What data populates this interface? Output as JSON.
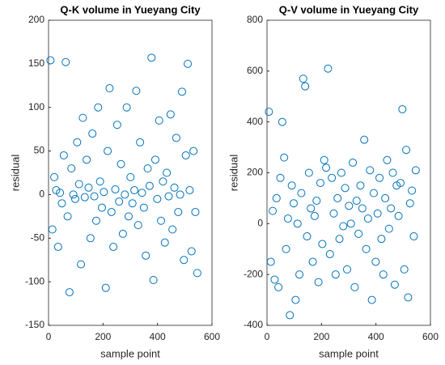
{
  "chart_data": [
    {
      "type": "scatter",
      "title": "Q-K volume in Yueyang City",
      "xlabel": "sample point",
      "ylabel": "residual",
      "color": "#0072bd",
      "xlim": [
        0,
        600
      ],
      "xticks": [
        0,
        200,
        400,
        600
      ],
      "ylim": [
        -150,
        200
      ],
      "yticks": [
        -150,
        -100,
        -50,
        0,
        50,
        100,
        150,
        200
      ],
      "x": [
        7,
        14,
        21,
        28,
        35,
        42,
        49,
        56,
        63,
        70,
        77,
        84,
        91,
        98,
        105,
        112,
        119,
        126,
        133,
        140,
        147,
        154,
        161,
        168,
        175,
        182,
        189,
        196,
        203,
        210,
        217,
        224,
        231,
        238,
        245,
        252,
        259,
        266,
        273,
        280,
        287,
        294,
        301,
        308,
        315,
        322,
        329,
        336,
        343,
        350,
        357,
        364,
        371,
        378,
        385,
        392,
        399,
        406,
        413,
        420,
        427,
        434,
        441,
        448,
        455,
        462,
        469,
        476,
        483,
        490,
        497,
        504,
        511,
        518,
        525,
        532,
        539,
        546
      ],
      "values": [
        154,
        -40,
        20,
        5,
        -60,
        2,
        -10,
        45,
        152,
        -25,
        -112,
        30,
        0,
        -5,
        60,
        12,
        -80,
        88,
        -3,
        40,
        8,
        -50,
        70,
        -2,
        -30,
        100,
        15,
        -15,
        3,
        -107,
        50,
        122,
        -20,
        -60,
        6,
        80,
        -8,
        35,
        -45,
        0,
        100,
        -25,
        20,
        -10,
        5,
        119,
        -35,
        60,
        2,
        -15,
        -70,
        30,
        10,
        157,
        -98,
        40,
        -5,
        85,
        -30,
        15,
        -55,
        25,
        -2,
        92,
        -40,
        8,
        65,
        -20,
        0,
        118,
        -75,
        45,
        150,
        5,
        -65,
        50,
        -20,
        -90
      ]
    },
    {
      "type": "scatter",
      "title": "Q-V volume in Yueyang City",
      "xlabel": "sample point",
      "ylabel": "residual",
      "color": "#0072bd",
      "xlim": [
        0,
        600
      ],
      "xticks": [
        0,
        200,
        400,
        600
      ],
      "ylim": [
        -400,
        800
      ],
      "yticks": [
        -400,
        -200,
        0,
        200,
        400,
        600,
        800
      ],
      "x": [
        7,
        14,
        21,
        28,
        35,
        42,
        49,
        56,
        63,
        70,
        77,
        84,
        91,
        98,
        105,
        112,
        119,
        126,
        133,
        140,
        147,
        154,
        161,
        168,
        175,
        182,
        189,
        196,
        203,
        210,
        217,
        224,
        231,
        238,
        245,
        252,
        259,
        266,
        273,
        280,
        287,
        294,
        301,
        308,
        315,
        322,
        329,
        336,
        343,
        350,
        357,
        364,
        371,
        378,
        385,
        392,
        399,
        406,
        413,
        420,
        427,
        434,
        441,
        448,
        455,
        462,
        469,
        476,
        483,
        490,
        497,
        504,
        511,
        518,
        525,
        532,
        539,
        546
      ],
      "values": [
        440,
        -150,
        50,
        -220,
        100,
        -250,
        180,
        400,
        260,
        -100,
        20,
        -360,
        150,
        80,
        -300,
        0,
        -200,
        120,
        570,
        540,
        -50,
        200,
        60,
        -150,
        30,
        90,
        -230,
        160,
        -80,
        250,
        220,
        610,
        -120,
        180,
        40,
        -200,
        100,
        -60,
        200,
        -10,
        140,
        -180,
        70,
        0,
        240,
        -250,
        90,
        -40,
        150,
        60,
        330,
        -100,
        20,
        210,
        -300,
        120,
        -150,
        40,
        180,
        -60,
        -200,
        100,
        250,
        -20,
        60,
        200,
        -240,
        150,
        30,
        160,
        450,
        -180,
        290,
        -290,
        80,
        130,
        -50,
        210
      ]
    }
  ]
}
